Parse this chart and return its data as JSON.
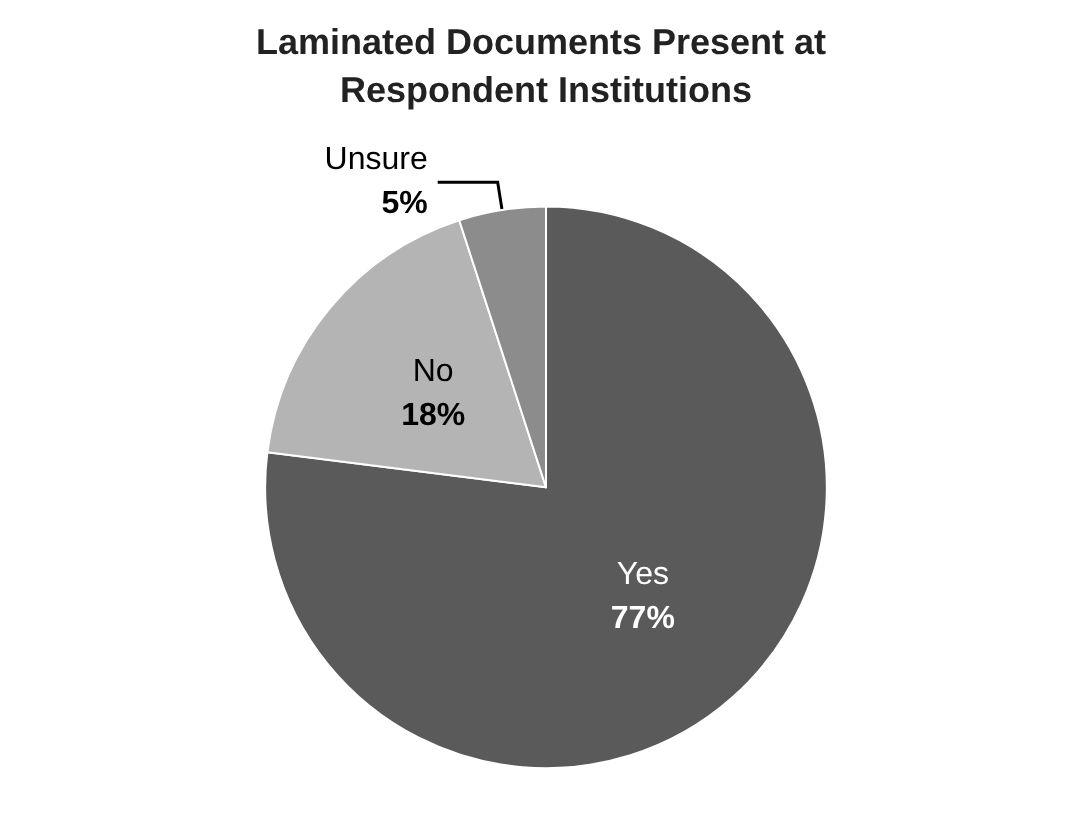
{
  "chart_data": {
    "type": "pie",
    "title": "Laminated Documents Present at Respondent Institutions",
    "categories": [
      "Yes",
      "No",
      "Unsure"
    ],
    "values": [
      77,
      18,
      5
    ],
    "value_labels": [
      "77%",
      "18%",
      "5%"
    ],
    "colors": [
      "#5a5a5a",
      "#b4b4b4",
      "#8c8c8c"
    ],
    "legend": false
  }
}
